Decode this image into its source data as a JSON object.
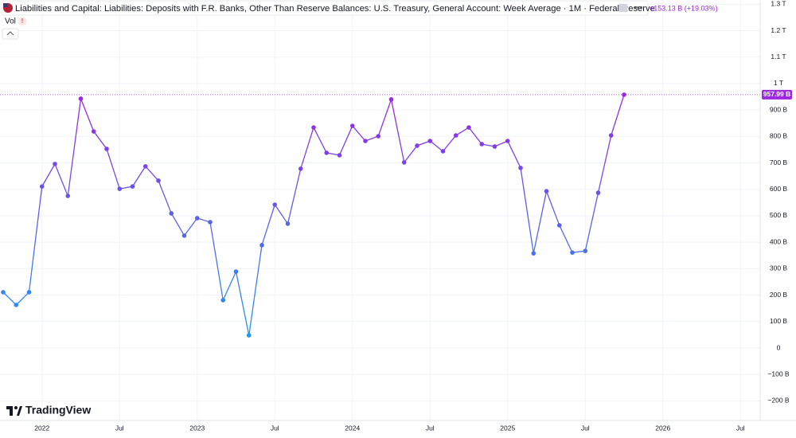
{
  "chart_data": {
    "type": "line",
    "title": "Liabilities and Capital: Liabilities: Deposits with F.R. Banks, Other Than Reserve Balances: U.S. Treasury, General Account: Week Average · 1M · Federal Reserve",
    "change_label": "+153.13 B (+19.03%)",
    "volume_label": "Vol",
    "brand": "TradingView",
    "last_value_label": "957.99 B",
    "categories": [
      null,
      null,
      null,
      "2022",
      null,
      null,
      null,
      null,
      null,
      "Jul",
      null,
      null,
      null,
      null,
      null,
      "2023",
      null,
      null,
      null,
      null,
      null,
      "Jul",
      null,
      null,
      null,
      null,
      null,
      "2024",
      null,
      null,
      null,
      null,
      null,
      "Jul",
      null,
      null,
      null,
      null,
      null,
      "2025",
      null,
      null,
      null,
      null,
      null,
      "Jul",
      null,
      null,
      null,
      null,
      null,
      "2026",
      null,
      null,
      null,
      null,
      null,
      "Jul"
    ],
    "series": [
      {
        "name": "U.S. Treasury, General Account",
        "color_low": "#2196f3",
        "color_high": "#9c27e0",
        "values": [
          211,
          163,
          211,
          611,
          696,
          575,
          943,
          819,
          753,
          602,
          611,
          687,
          633,
          509,
          425,
          491,
          476,
          181,
          289,
          48,
          389,
          542,
          470,
          678,
          834,
          738,
          729,
          840,
          783,
          801,
          940,
          702,
          765,
          783,
          744,
          804,
          834,
          771,
          762,
          783,
          681,
          358,
          593,
          464,
          361,
          367,
          587,
          804,
          957.99,
          null,
          null,
          null,
          null,
          null,
          null,
          null,
          null,
          null
        ]
      }
    ],
    "ylim": [
      -274,
      1316
    ],
    "yticks": [
      {
        "value": -200,
        "label": "−200 B"
      },
      {
        "value": -100,
        "label": "−100 B"
      },
      0,
      {
        "value": 100,
        "label": "100 B"
      },
      {
        "value": 200,
        "label": "200 B"
      },
      {
        "value": 300,
        "label": "300 B"
      },
      {
        "value": 400,
        "label": "400 B"
      },
      {
        "value": 500,
        "label": "500 B"
      },
      {
        "value": 600,
        "label": "600 B"
      },
      {
        "value": 700,
        "label": "700 B"
      },
      {
        "value": 800,
        "label": "800 B"
      },
      {
        "value": 900,
        "label": "900 B"
      },
      {
        "value": 1000,
        "label": "1 T"
      },
      {
        "value": 1100,
        "label": "1.1 T"
      },
      {
        "value": 1200,
        "label": "1.2 T"
      },
      {
        "value": 1300,
        "label": "1.3 T"
      }
    ],
    "grid": true
  }
}
